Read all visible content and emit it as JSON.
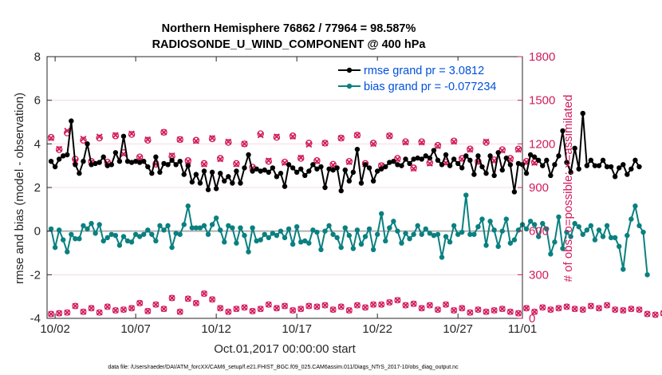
{
  "chart_data": {
    "type": "line",
    "title_line1": "Northern Hemisphere 76862 / 77964 = 98.587%",
    "title_line2": "RADIOSONDE_U_WIND_COMPONENT @ 400 hPa",
    "xlabel": "Oct.01,2017 00:00:00 start",
    "ylabel_left": "rmse and bias (model - observation)",
    "ylabel_right": "# of obs: o=possible; ×=assimilated",
    "footer": "data file: /Users/raeder/DAI/ATM_forcXX/CAM6_setup/f.e21.FHIST_BGC.f09_025.CAM6assim.011/Diags_NTrS_2017-10/obs_diag_output.nc",
    "xlim": [
      1.5,
      31
    ],
    "ylim_left": [
      -4,
      8
    ],
    "ylim_right": [
      0,
      1800
    ],
    "x_ticks": [
      2,
      7,
      12,
      17,
      22,
      27,
      31
    ],
    "x_tick_labels": [
      "10/02",
      "10/07",
      "10/12",
      "10/17",
      "10/22",
      "10/27",
      "11/01"
    ],
    "y_ticks_left": [
      -4,
      -2,
      0,
      2,
      4,
      6,
      8
    ],
    "y_ticks_right": [
      0,
      300,
      600,
      900,
      1200,
      1500,
      1800
    ],
    "colors": {
      "rmse": "#000000",
      "bias": "#0a8080",
      "obs": "#d11b5c",
      "legend_text": "#0050dd",
      "zero_line": "#b0b0b0"
    },
    "legend": [
      {
        "label": "rmse grand pr = 3.0812",
        "series": "rmse"
      },
      {
        "label": "bias grand pr = -0.077234",
        "series": "bias"
      }
    ],
    "x_start": 1.75,
    "x_step": 0.25,
    "rmse": [
      3.2,
      2.95,
      3.3,
      3.45,
      3.5,
      5.05,
      3.05,
      2.65,
      3.2,
      4.0,
      3.05,
      3.1,
      3.15,
      3.4,
      3.0,
      3.05,
      3.6,
      3.2,
      4.35,
      3.2,
      3.15,
      3.2,
      3.15,
      3.2,
      2.95,
      2.65,
      3.4,
      2.7,
      3.1,
      3.05,
      3.25,
      3.05,
      3.2,
      2.6,
      3.0,
      2.25,
      2.6,
      2.2,
      2.75,
      1.9,
      2.7,
      1.95,
      2.65,
      2.3,
      2.5,
      2.2,
      2.75,
      2.2,
      2.9,
      3.5,
      2.75,
      2.85,
      2.75,
      2.8,
      2.7,
      2.9,
      2.5,
      2.65,
      2.05,
      3.05,
      2.9,
      2.7,
      2.85,
      2.55,
      2.75,
      3.05,
      2.85,
      2.95,
      2.0,
      2.85,
      2.8,
      2.9,
      1.85,
      2.8,
      2.3,
      2.7,
      3.75,
      2.2,
      3.05,
      2.9,
      2.3,
      2.75,
      2.85,
      2.95,
      3.15,
      3.2,
      3.05,
      3.0,
      3.3,
      3.1,
      3.3,
      3.35,
      3.3,
      3.45,
      3.35,
      3.7,
      3.25,
      3.05,
      3.5,
      3.0,
      3.3,
      3.1,
      2.9,
      3.45,
      3.25,
      2.6,
      3.45,
      2.95,
      2.65,
      3.45,
      2.55,
      3.6,
      2.8,
      3.35,
      3.05,
      1.8,
      3.1,
      3.05,
      2.65,
      3.5,
      3.4,
      3.25,
      3.0,
      3.25,
      2.55,
      3.05,
      3.45,
      4.6,
      3.15,
      2.7,
      3.8,
      2.85,
      5.4,
      3.0,
      3.25,
      3.0,
      3.0,
      3.25,
      2.95,
      2.95,
      2.5,
      2.9,
      3.05,
      2.6,
      2.85,
      3.25,
      2.95
    ],
    "bias": [
      0.1,
      -0.75,
      0.05,
      -0.4,
      -0.95,
      -0.15,
      -0.35,
      -0.35,
      0.25,
      0.1,
      0.35,
      -0.1,
      0.3,
      -0.45,
      -0.3,
      -0.15,
      -0.2,
      -0.65,
      -0.25,
      -0.45,
      -0.5,
      -0.15,
      -0.25,
      -0.15,
      0.05,
      -0.15,
      -0.45,
      0.25,
      0.05,
      0.25,
      -0.75,
      -0.1,
      -0.15,
      0.3,
      1.15,
      0.15,
      0.15,
      0.15,
      0.25,
      -0.15,
      0.3,
      0.6,
      0.05,
      -0.5,
      0.25,
      0.15,
      -0.55,
      0.15,
      -0.2,
      -0.95,
      0.15,
      -0.45,
      -0.4,
      -0.15,
      -0.3,
      -0.1,
      -0.2,
      0.0,
      -0.3,
      0.1,
      -0.6,
      0.2,
      -0.5,
      -0.45,
      -0.55,
      0.05,
      -0.05,
      -0.85,
      0.0,
      0.25,
      -0.15,
      -0.3,
      -0.75,
      0.15,
      -0.2,
      -0.8,
      0.05,
      -0.6,
      -0.25,
      0.1,
      -0.85,
      -0.15,
      0.8,
      -0.45,
      0.15,
      0.45,
      0.0,
      -0.55,
      -0.1,
      -0.35,
      -0.15,
      0.25,
      -0.15,
      0.1,
      -0.1,
      -0.2,
      -0.15,
      -1.2,
      -0.25,
      -0.5,
      0.25,
      -0.15,
      -0.05,
      1.65,
      -0.15,
      -0.15,
      0.2,
      0.55,
      -0.65,
      0.45,
      0.05,
      -0.7,
      0.0,
      0.55,
      -0.55,
      -0.4,
      0.05,
      0.3,
      0.1,
      0.45,
      0.3,
      -0.25,
      0.35,
      0.1,
      -1.05,
      -0.5,
      0.65,
      -0.8,
      -0.05,
      -0.25,
      0.35,
      0.2,
      -0.15,
      0.05,
      0.25,
      -0.4,
      0.05,
      -0.25,
      0.25,
      -0.3,
      -0.3,
      -0.7,
      -1.75,
      -0.2,
      0.55,
      1.15,
      0.25,
      -0.05,
      -2.0
    ],
    "possible_start": 1.75,
    "possible_step": 0.5,
    "possible": [
      1245,
      1160,
      1275,
      1095,
      1225,
      1080,
      1240,
      1075,
      1255,
      1140,
      1265,
      1110,
      1225,
      1060,
      1280,
      1115,
      1230,
      1085,
      1225,
      1065,
      1235,
      1100,
      1210,
      1065,
      1200,
      1040,
      1270,
      1080,
      1245,
      1075,
      1255,
      1100,
      1205,
      1085,
      1205,
      1060,
      1240,
      1080,
      1260,
      1065,
      1205,
      1050,
      1255,
      1100,
      1215,
      1035,
      1215,
      1070,
      1190,
      1075,
      1220,
      1100,
      1165,
      1080,
      1210,
      1090,
      1160,
      1100,
      1165,
      1080,
      1075
    ],
    "assimilated_start": 1.75,
    "assimilated_step": 0.5,
    "assimilated": [
      1240,
      1165,
      1290,
      1080,
      1235,
      1075,
      1250,
      1070,
      1260,
      1130,
      1270,
      1105,
      1230,
      1060,
      1280,
      1120,
      1230,
      1080,
      1220,
      1060,
      1240,
      1095,
      1215,
      1060,
      1200,
      1035,
      1260,
      1085,
      1250,
      1070,
      1250,
      1105,
      1195,
      1080,
      1205,
      1055,
      1240,
      1075,
      1260,
      1060,
      1200,
      1050,
      1255,
      1095,
      1210,
      1030,
      1210,
      1065,
      1185,
      1070,
      1215,
      1095,
      1160,
      1075,
      1215,
      1085,
      1155,
      1095,
      1160,
      1075,
      1070
    ],
    "low_start": 1.75,
    "low_step": 0.5,
    "low": [
      30,
      35,
      40,
      85,
      45,
      70,
      40,
      80,
      55,
      60,
      70,
      105,
      50,
      95,
      65,
      140,
      45,
      135,
      105,
      170,
      130,
      70,
      45,
      65,
      75,
      50,
      65,
      95,
      70,
      85,
      55,
      65,
      85,
      80,
      90,
      60,
      80,
      55,
      90,
      75,
      95,
      95,
      110,
      125,
      90,
      100,
      70,
      90,
      60,
      95,
      55,
      70,
      40,
      60,
      45,
      55,
      65,
      45,
      35,
      70,
      45,
      75,
      60,
      70,
      80,
      65,
      60,
      85,
      70,
      90,
      60,
      55,
      65,
      60,
      30,
      25,
      35,
      20,
      20,
      35,
      0
    ]
  }
}
